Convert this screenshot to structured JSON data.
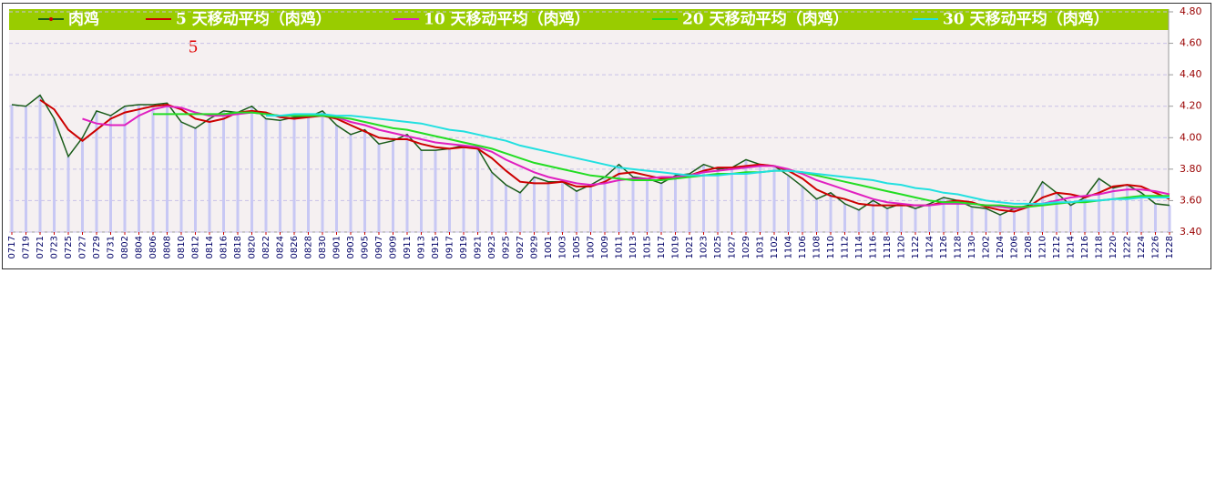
{
  "chart_data": {
    "type": "line",
    "annotation": "5",
    "categories": [
      "0717",
      "0719",
      "0721",
      "0723",
      "0725",
      "0727",
      "0729",
      "0731",
      "0802",
      "0804",
      "0806",
      "0808",
      "0810",
      "0812",
      "0814",
      "0816",
      "0818",
      "0820",
      "0822",
      "0824",
      "0826",
      "0828",
      "0830",
      "0901",
      "0903",
      "0905",
      "0907",
      "0909",
      "0911",
      "0913",
      "0915",
      "0917",
      "0919",
      "0921",
      "0923",
      "0925",
      "0927",
      "0929",
      "1001",
      "1003",
      "1005",
      "1007",
      "1009",
      "1011",
      "1013",
      "1015",
      "1017",
      "1019",
      "1021",
      "1023",
      "1025",
      "1027",
      "1029",
      "1031",
      "1102",
      "1104",
      "1106",
      "1108",
      "1110",
      "1112",
      "1114",
      "1116",
      "1118",
      "1120",
      "1122",
      "1124",
      "1126",
      "1128",
      "1130",
      "1202",
      "1204",
      "1206",
      "1208",
      "1210",
      "1212",
      "1214",
      "1216",
      "1218",
      "1220",
      "1222",
      "1224",
      "1226",
      "1228"
    ],
    "series": [
      {
        "name": "肉鸡",
        "color": "#1a5c1a",
        "values": [
          4.21,
          4.2,
          4.27,
          4.12,
          3.88,
          4.0,
          4.17,
          4.14,
          4.2,
          4.21,
          4.21,
          4.22,
          4.1,
          4.06,
          4.12,
          4.17,
          4.16,
          4.2,
          4.12,
          4.11,
          4.13,
          4.13,
          4.17,
          4.08,
          4.02,
          4.05,
          3.96,
          3.98,
          4.02,
          3.92,
          3.92,
          3.93,
          3.95,
          3.93,
          3.78,
          3.7,
          3.65,
          3.75,
          3.72,
          3.72,
          3.66,
          3.7,
          3.75,
          3.83,
          3.75,
          3.74,
          3.71,
          3.76,
          3.77,
          3.83,
          3.8,
          3.81,
          3.86,
          3.83,
          3.82,
          3.76,
          3.69,
          3.61,
          3.65,
          3.58,
          3.54,
          3.6,
          3.55,
          3.58,
          3.55,
          3.58,
          3.62,
          3.6,
          3.56,
          3.55,
          3.51,
          3.55,
          3.57,
          3.72,
          3.65,
          3.57,
          3.62,
          3.74,
          3.68,
          3.7,
          3.65,
          3.58,
          3.57
        ]
      },
      {
        "name": "5 天移动平均（肉鸡）",
        "color": "#cc0000",
        "values": [
          null,
          null,
          4.24,
          4.18,
          4.05,
          3.98,
          4.05,
          4.12,
          4.16,
          4.18,
          4.2,
          4.21,
          4.18,
          4.12,
          4.1,
          4.12,
          4.16,
          4.17,
          4.16,
          4.13,
          4.12,
          4.13,
          4.14,
          4.12,
          4.08,
          4.04,
          4.0,
          3.99,
          3.99,
          3.96,
          3.94,
          3.93,
          3.94,
          3.93,
          3.87,
          3.79,
          3.72,
          3.71,
          3.71,
          3.72,
          3.69,
          3.69,
          3.72,
          3.77,
          3.78,
          3.76,
          3.74,
          3.74,
          3.76,
          3.79,
          3.81,
          3.81,
          3.82,
          3.83,
          3.82,
          3.79,
          3.74,
          3.67,
          3.63,
          3.61,
          3.58,
          3.57,
          3.57,
          3.57,
          3.57,
          3.57,
          3.59,
          3.6,
          3.59,
          3.56,
          3.54,
          3.53,
          3.56,
          3.62,
          3.65,
          3.64,
          3.62,
          3.65,
          3.69,
          3.7,
          3.69,
          3.65,
          3.61
        ]
      },
      {
        "name": "10 天移动平均（肉鸡）",
        "color": "#e020c0",
        "values": [
          null,
          null,
          null,
          null,
          null,
          4.12,
          4.09,
          4.08,
          4.08,
          4.14,
          4.18,
          4.2,
          4.19,
          4.16,
          4.14,
          4.14,
          4.15,
          4.16,
          4.15,
          4.14,
          4.14,
          4.14,
          4.15,
          4.13,
          4.1,
          4.08,
          4.05,
          4.03,
          4.01,
          3.99,
          3.97,
          3.96,
          3.95,
          3.94,
          3.91,
          3.86,
          3.82,
          3.78,
          3.75,
          3.73,
          3.71,
          3.7,
          3.71,
          3.73,
          3.74,
          3.74,
          3.75,
          3.75,
          3.76,
          3.78,
          3.79,
          3.8,
          3.81,
          3.82,
          3.82,
          3.8,
          3.77,
          3.73,
          3.7,
          3.67,
          3.64,
          3.61,
          3.59,
          3.58,
          3.57,
          3.57,
          3.58,
          3.58,
          3.58,
          3.57,
          3.56,
          3.55,
          3.56,
          3.58,
          3.6,
          3.62,
          3.63,
          3.64,
          3.66,
          3.67,
          3.67,
          3.66,
          3.64
        ]
      },
      {
        "name": "20 天移动平均（肉鸡）",
        "color": "#22dd22",
        "values": [
          null,
          null,
          null,
          null,
          null,
          null,
          null,
          null,
          null,
          null,
          4.15,
          4.15,
          4.15,
          4.15,
          4.15,
          4.15,
          4.16,
          4.16,
          4.15,
          4.14,
          4.14,
          4.14,
          4.14,
          4.13,
          4.12,
          4.1,
          4.08,
          4.06,
          4.05,
          4.03,
          4.01,
          3.99,
          3.97,
          3.95,
          3.93,
          3.9,
          3.87,
          3.84,
          3.82,
          3.8,
          3.78,
          3.76,
          3.75,
          3.74,
          3.73,
          3.73,
          3.73,
          3.74,
          3.75,
          3.76,
          3.77,
          3.77,
          3.78,
          3.78,
          3.79,
          3.79,
          3.78,
          3.76,
          3.74,
          3.72,
          3.7,
          3.68,
          3.66,
          3.64,
          3.62,
          3.6,
          3.59,
          3.59,
          3.58,
          3.57,
          3.57,
          3.56,
          3.56,
          3.57,
          3.58,
          3.59,
          3.59,
          3.6,
          3.61,
          3.62,
          3.63,
          3.63,
          3.63
        ]
      },
      {
        "name": "30 天移动平均（肉鸡）",
        "color": "#22e0e0",
        "values": [
          null,
          null,
          null,
          null,
          null,
          null,
          null,
          null,
          null,
          null,
          null,
          null,
          null,
          null,
          null,
          null,
          null,
          null,
          4.14,
          4.14,
          4.15,
          4.15,
          4.15,
          4.14,
          4.14,
          4.13,
          4.12,
          4.11,
          4.1,
          4.09,
          4.07,
          4.05,
          4.04,
          4.02,
          4.0,
          3.98,
          3.95,
          3.93,
          3.91,
          3.89,
          3.87,
          3.85,
          3.83,
          3.81,
          3.8,
          3.79,
          3.78,
          3.77,
          3.76,
          3.76,
          3.76,
          3.77,
          3.77,
          3.78,
          3.79,
          3.79,
          3.78,
          3.77,
          3.76,
          3.75,
          3.74,
          3.73,
          3.71,
          3.7,
          3.68,
          3.67,
          3.65,
          3.64,
          3.62,
          3.6,
          3.59,
          3.58,
          3.58,
          3.58,
          3.59,
          3.59,
          3.6,
          3.6,
          3.61,
          3.61,
          3.62,
          3.62,
          3.62
        ]
      }
    ],
    "bar_color": "#c8c8f4",
    "ylim": [
      3.4,
      4.8
    ],
    "yticks": [
      {
        "value": 3.4,
        "label": "3.40"
      },
      {
        "value": 3.6,
        "label": "3.60"
      },
      {
        "value": 3.8,
        "label": "3.80"
      },
      {
        "value": 4.0,
        "label": "4.00"
      },
      {
        "value": 4.2,
        "label": "4.20"
      },
      {
        "value": 4.4,
        "label": "4.40"
      },
      {
        "value": 4.6,
        "label": "4.60"
      },
      {
        "value": 4.8,
        "label": "4.80"
      }
    ],
    "grid": true
  }
}
